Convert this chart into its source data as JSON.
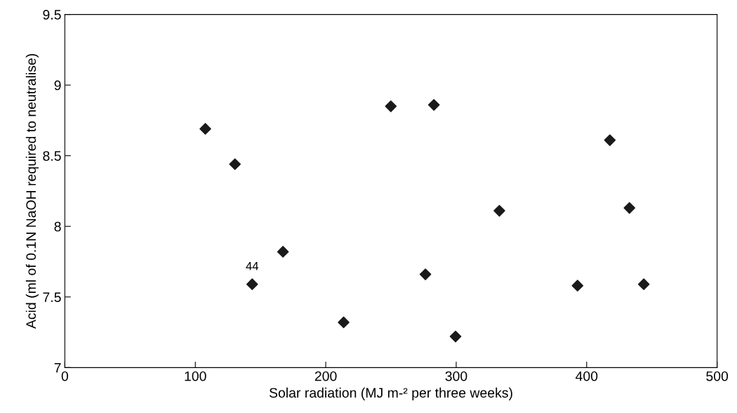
{
  "chart_data": {
    "type": "scatter",
    "xlabel": "Solar radiation (MJ m-² per three weeks)",
    "ylabel": "Acid (ml of 0.1N NaOH required to neutralise)",
    "x": [
      107.7,
      130.4,
      143.6,
      167.2,
      213.7,
      249.9,
      276.4,
      282.9,
      299.5,
      333.1,
      393,
      417.8,
      432.8,
      443.8
    ],
    "values": [
      8.69,
      8.44,
      7.59,
      7.82,
      7.32,
      8.85,
      7.66,
      8.86,
      7.22,
      8.11,
      7.58,
      8.61,
      8.13,
      7.59
    ],
    "color": "#1a1a1a",
    "marker": "diamond",
    "xlim": [
      0,
      500
    ],
    "xticks": [
      0,
      100,
      200,
      300,
      400,
      500
    ],
    "ylim": [
      7,
      9.5
    ],
    "yticks": [
      7,
      7.5,
      8,
      8.5,
      9,
      9.5
    ],
    "annotations": [
      {
        "text": "44",
        "x": 143.6,
        "y": 7.59
      }
    ],
    "grid": false,
    "legend": false
  }
}
